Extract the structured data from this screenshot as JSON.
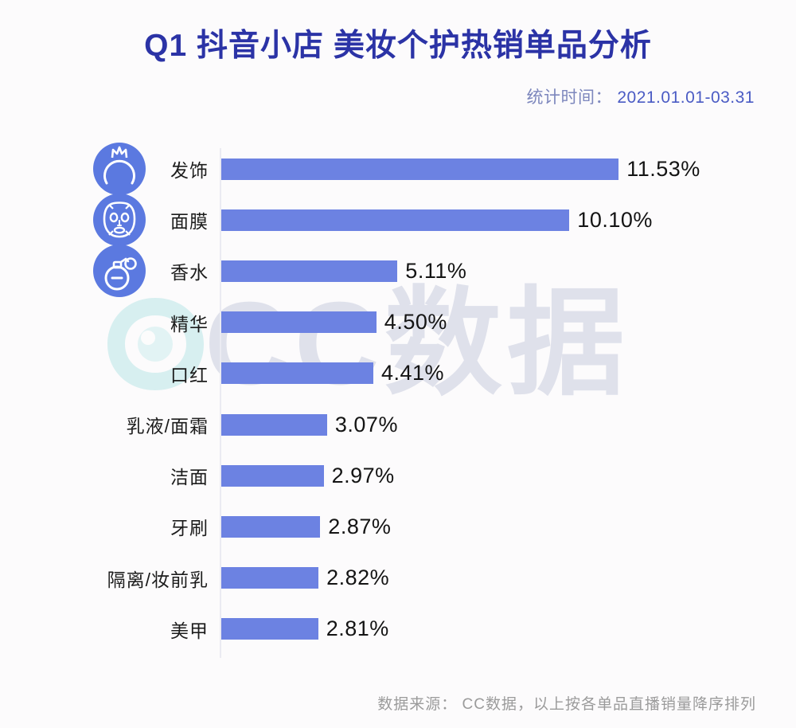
{
  "page": {
    "title": "Q1 抖音小店 美妆个护热销单品分析",
    "stat_time_label": "统计时间：",
    "stat_time_value": "2021.01.01-03.31",
    "watermark_text": "CC数据",
    "footer": "数据来源： CC数据，以上按各单品直播销量降序排列"
  },
  "colors": {
    "title_text": "#2b33a6",
    "bar_fill": "#6c82e2",
    "icon_circle": "#5b79e0",
    "subtitle_label": "#7d87bd",
    "subtitle_value": "#4a5bc4",
    "footer_text": "#9b9b9b",
    "watermark_teal": "#8fd9da"
  },
  "chart_data": {
    "type": "bar",
    "orientation": "horizontal",
    "title": "Q1 抖音小店 美妆个护热销单品分析",
    "unit": "%",
    "sort": "descending",
    "xlim": [
      0,
      12
    ],
    "grid": false,
    "legend": "none",
    "categories": [
      "发饰",
      "面膜",
      "香水",
      "精华",
      "口红",
      "乳液/面霜",
      "洁面",
      "牙刷",
      "隔离/妆前乳",
      "美甲"
    ],
    "values": [
      11.53,
      10.1,
      5.11,
      4.5,
      4.41,
      3.07,
      2.97,
      2.87,
      2.82,
      2.81
    ],
    "value_labels": [
      "11.53%",
      "10.10%",
      "5.11%",
      "4.50%",
      "4.41%",
      "3.07%",
      "2.97%",
      "2.87%",
      "2.82%",
      "2.81%"
    ],
    "row_icons": [
      "hair-accessory-icon",
      "face-mask-icon",
      "perfume-icon"
    ]
  }
}
